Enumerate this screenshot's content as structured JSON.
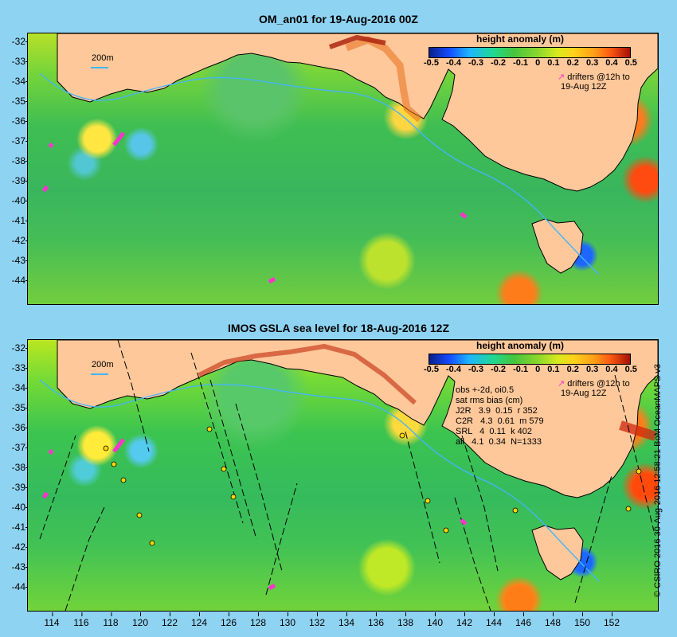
{
  "top_panel": {
    "title": "OM_an01 for 19-Aug-2016 00Z",
    "scale_label": "200m",
    "legend": {
      "title": "height anomaly (m)",
      "ticks": [
        "-0.5",
        "-0.4",
        "-0.3",
        "-0.2",
        "-0.1",
        "0",
        "0.1",
        "0.2",
        "0.3",
        "0.4",
        "0.5"
      ],
      "drifter_line1": "drifters @12h to",
      "drifter_line2": "19-Aug 12Z"
    },
    "y_ticks": [
      "-32",
      "-33",
      "-34",
      "-35",
      "-36",
      "-37",
      "-38",
      "-39",
      "-40",
      "-41",
      "-42",
      "-43",
      "-44"
    ]
  },
  "bottom_panel": {
    "title": "IMOS GSLA sea level  for 18-Aug-2016 12Z",
    "scale_label": "200m",
    "legend": {
      "title": "height anomaly (m)",
      "ticks": [
        "-0.5",
        "-0.4",
        "-0.3",
        "-0.2",
        "-0.1",
        "0",
        "0.1",
        "0.2",
        "0.3",
        "0.4",
        "0.5"
      ],
      "drifter_line1": "drifters @12h to",
      "drifter_line2": "19-Aug 12Z"
    },
    "stats": {
      "line1": "obs +-2d, oi0.5",
      "line2": "sat rms bias (cm)",
      "line3": "J2R   3.9  0.15  r 352",
      "line4": "C2R   4.3  0.61  m 579",
      "line5": "SRL   4  0.11  k 402",
      "line6": "all   4.1  0.34  N=1333"
    },
    "y_ticks": [
      "-32",
      "-33",
      "-34",
      "-35",
      "-36",
      "-37",
      "-38",
      "-39",
      "-40",
      "-41",
      "-42",
      "-43",
      "-44"
    ]
  },
  "x_ticks": [
    "114",
    "116",
    "118",
    "120",
    "122",
    "124",
    "126",
    "128",
    "130",
    "132",
    "134",
    "136",
    "138",
    "140",
    "142",
    "144",
    "146",
    "148",
    "150",
    "152"
  ],
  "watermark": "© CSIRO 2016   30-Aug-2016 12:58:21 BoM OceanMAPS v3",
  "colors": {
    "background": "#8fd3f2",
    "land": "#ffc89a",
    "drifter": "#ff33cc",
    "bathymetry": "#43b4ff"
  },
  "icons": [
    "drifter-arrow-icon"
  ]
}
